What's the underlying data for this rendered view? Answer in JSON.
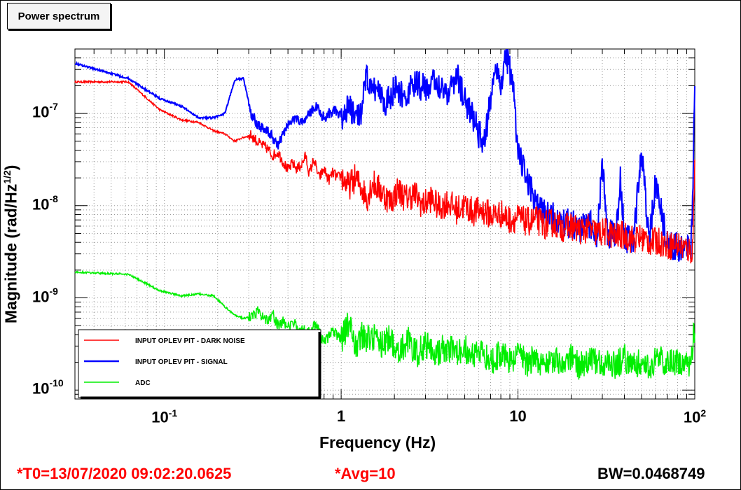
{
  "window": {
    "title": "Power spectrum"
  },
  "footer": {
    "t0": "*T0=13/07/2020 09:02:20.0625",
    "avg": "*Avg=10",
    "bw": "BW=0.0468749",
    "t0_color": "#ff0000",
    "avg_color": "#ff0000",
    "bw_color": "#000000"
  },
  "chart_data": {
    "type": "line",
    "xlabel": "Frequency (Hz)",
    "ylabel_main": "Magnitude (rad/Hz",
    "ylabel_sup": "1/2",
    "ylabel_end": ")",
    "x_scale": "log",
    "y_scale": "log",
    "xlim": [
      0.0312,
      100
    ],
    "ylim": [
      8e-11,
      5e-07
    ],
    "grid": true,
    "legend_position": "bottom-left",
    "y_ticks": [
      {
        "base": "10",
        "exp": "-7",
        "value": 1e-07
      },
      {
        "base": "10",
        "exp": "-8",
        "value": 1e-08
      },
      {
        "base": "10",
        "exp": "-9",
        "value": 1e-09
      },
      {
        "base": "10",
        "exp": "-10",
        "value": 1e-10
      }
    ],
    "x_ticks": [
      {
        "base": "10",
        "exp": "-1",
        "value": 0.1
      },
      {
        "base": "1",
        "exp": "",
        "value": 1
      },
      {
        "base": "10",
        "exp": "",
        "value": 10
      },
      {
        "base": "10",
        "exp": "2",
        "value": 100
      }
    ],
    "series": [
      {
        "name": "INPUT OPLEV PIT - DARK NOISE",
        "color": "#ff0000",
        "x": [
          0.0312,
          0.0625,
          0.094,
          0.125,
          0.156,
          0.19,
          0.22,
          0.25,
          0.28,
          0.31,
          0.34,
          0.38,
          0.41,
          0.44,
          0.47,
          0.5,
          0.53,
          0.56,
          0.6,
          0.63,
          0.66,
          0.7,
          0.75,
          0.8,
          0.85,
          0.9,
          0.95,
          1.0,
          1.1,
          1.2,
          1.3,
          1.4,
          1.5,
          1.7,
          1.9,
          2.1,
          2.3,
          2.6,
          2.9,
          3.2,
          3.6,
          4.0,
          4.5,
          5.0,
          5.6,
          6.3,
          7.1,
          8.0,
          9.0,
          10,
          11.2,
          12.6,
          14.1,
          15.8,
          17.8,
          20,
          22.4,
          25.1,
          28.2,
          31.6,
          35.5,
          39.8,
          44.7,
          50.1,
          56.2,
          63.1,
          70.8,
          79.4,
          89.1,
          97,
          100
        ],
        "y": [
          2.2e-07,
          2.2e-07,
          1.1e-07,
          8.5e-08,
          8e-08,
          6.5e-08,
          6e-08,
          5e-08,
          5.5e-08,
          5.8e-08,
          4.8e-08,
          4.2e-08,
          3.5e-08,
          3.8e-08,
          3e-08,
          2.4e-08,
          2.9e-08,
          2.5e-08,
          2.8e-08,
          3.5e-08,
          2.2e-08,
          3.2e-08,
          2e-08,
          2.5e-08,
          1.9e-08,
          2.3e-08,
          2e-08,
          2.1e-08,
          1.6e-08,
          2e-08,
          1.6e-08,
          1.2e-08,
          1.8e-08,
          1.4e-08,
          1.1e-08,
          1.5e-08,
          1.2e-08,
          1.35e-08,
          1e-08,
          1.2e-08,
          9.5e-09,
          1.1e-08,
          9e-09,
          1e-08,
          8.5e-09,
          9e-09,
          7.8e-09,
          8.2e-09,
          7e-09,
          7.4e-09,
          6.6e-09,
          7e-09,
          6.2e-09,
          6.5e-09,
          5.8e-09,
          6e-09,
          5.4e-09,
          5.6e-09,
          5e-09,
          5.2e-09,
          4.6e-09,
          4.8e-09,
          4.3e-09,
          4.5e-09,
          4e-09,
          4.1e-09,
          3.7e-09,
          3.8e-09,
          3.4e-09,
          3.2e-09,
          2.5e-08
        ]
      },
      {
        "name": "INPUT OPLEV PIT - SIGNAL",
        "color": "#0000ff",
        "x": [
          0.0312,
          0.0625,
          0.094,
          0.125,
          0.156,
          0.19,
          0.22,
          0.25,
          0.28,
          0.31,
          0.34,
          0.38,
          0.41,
          0.44,
          0.47,
          0.5,
          0.55,
          0.6,
          0.66,
          0.72,
          0.8,
          0.9,
          1.0,
          1.1,
          1.2,
          1.3,
          1.4,
          1.5,
          1.6,
          1.8,
          2.0,
          2.3,
          2.6,
          3.0,
          3.5,
          4.0,
          4.5,
          5.0,
          5.6,
          6.0,
          6.5,
          7.0,
          7.5,
          8.0,
          8.5,
          9.0,
          9.5,
          10,
          11,
          12,
          13,
          15,
          17,
          20,
          22,
          25,
          28,
          30,
          32,
          36,
          38,
          40,
          45,
          50,
          55,
          60,
          70,
          80,
          90,
          95,
          97,
          100
        ],
        "y": [
          3.5e-07,
          2.4e-07,
          1.45e-07,
          1.2e-07,
          9e-08,
          9e-08,
          1e-07,
          2.3e-07,
          2.4e-07,
          1e-07,
          7.5e-08,
          6.5e-08,
          5.5e-08,
          4.5e-08,
          6e-08,
          7.5e-08,
          9e-08,
          8e-08,
          1e-07,
          1.2e-07,
          9e-08,
          1.1e-07,
          9e-08,
          1.2e-07,
          8.5e-08,
          1.1e-07,
          2.5e-07,
          1.6e-07,
          2e-07,
          1.3e-07,
          1.8e-07,
          1.5e-07,
          2.1e-07,
          1.9e-07,
          2.2e-07,
          1.7e-07,
          2.6e-07,
          1.4e-07,
          9e-08,
          6e-08,
          5e-08,
          1.5e-07,
          3.5e-07,
          2e-07,
          4.5e-07,
          3e-07,
          1.5e-07,
          4e-08,
          2e-08,
          1.4e-08,
          9e-09,
          8e-09,
          7e-09,
          6.5e-09,
          5.5e-09,
          6.5e-09,
          5e-09,
          2.8e-08,
          5e-09,
          4.8e-09,
          2e-08,
          4.5e-09,
          4.2e-09,
          4e-08,
          4e-09,
          1.7e-08,
          3.8e-09,
          3.6e-09,
          3.4e-09,
          3.2e-09,
          8e-09,
          2.8e-07
        ]
      },
      {
        "name": "ADC",
        "color": "#00ee00",
        "x": [
          0.0312,
          0.0625,
          0.094,
          0.125,
          0.156,
          0.19,
          0.22,
          0.25,
          0.28,
          0.31,
          0.34,
          0.38,
          0.41,
          0.44,
          0.47,
          0.5,
          0.55,
          0.6,
          0.66,
          0.72,
          0.8,
          0.9,
          1.0,
          1.1,
          1.2,
          1.3,
          1.4,
          1.5,
          1.7,
          1.9,
          2.1,
          2.4,
          2.7,
          3.0,
          3.5,
          4.0,
          4.5,
          5.0,
          5.6,
          6.3,
          7.1,
          8.0,
          9.0,
          10,
          11.2,
          12.6,
          14.1,
          15.8,
          17.8,
          20,
          22.4,
          25.1,
          28.2,
          31.6,
          35.5,
          39.8,
          44.7,
          50.1,
          56.2,
          63.1,
          70.8,
          79.4,
          89.1,
          95,
          100
        ],
        "y": [
          1.9e-09,
          1.8e-09,
          1.2e-09,
          1.05e-09,
          1.1e-09,
          1.05e-09,
          8e-10,
          6.5e-10,
          6e-10,
          6.2e-10,
          7.2e-10,
          5.8e-10,
          6.5e-10,
          5e-10,
          5.5e-10,
          4.8e-10,
          5.2e-10,
          4.5e-10,
          4.2e-10,
          5.2e-10,
          3.2e-10,
          4.5e-10,
          3.5e-10,
          5.5e-10,
          3e-10,
          4e-10,
          3.5e-10,
          3.8e-10,
          3.2e-10,
          3.6e-10,
          2.6e-10,
          3.4e-10,
          2.4e-10,
          3.2e-10,
          2.6e-10,
          2.9e-10,
          2.4e-10,
          2.8e-10,
          2.2e-10,
          2.6e-10,
          2.1e-10,
          2.5e-10,
          2e-10,
          2.4e-10,
          2e-10,
          2.3e-10,
          1.9e-10,
          2.2e-10,
          1.9e-10,
          2.2e-10,
          1.8e-10,
          2.2e-10,
          1.9e-10,
          2.1e-10,
          1.8e-10,
          2.2e-10,
          1.9e-10,
          2.1e-10,
          1.8e-10,
          2.2e-10,
          1.9e-10,
          2.1e-10,
          1.8e-10,
          2e-10,
          5e-10
        ]
      }
    ]
  }
}
